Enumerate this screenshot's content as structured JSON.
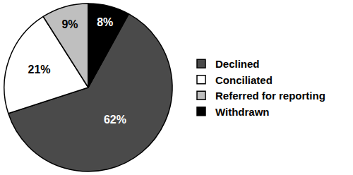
{
  "chart_data": {
    "type": "pie",
    "categories": [
      "Declined",
      "Conciliated",
      "Referred for reporting",
      "Withdrawn"
    ],
    "values": [
      62,
      21,
      9,
      8
    ],
    "value_labels": [
      "62%",
      "21%",
      "9%",
      "8%"
    ],
    "colors": [
      "#4a4a4a",
      "#ffffff",
      "#bfbfbf",
      "#000000"
    ],
    "data_labels": true,
    "legend": "right"
  }
}
